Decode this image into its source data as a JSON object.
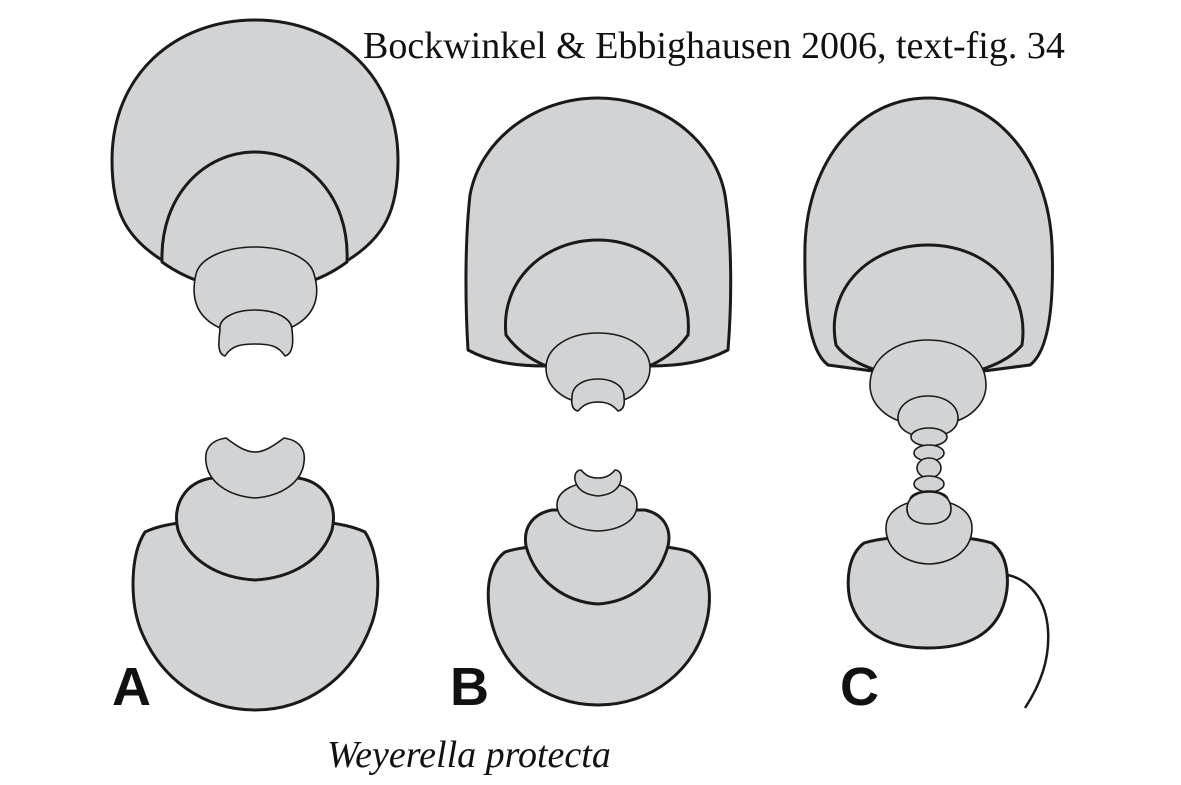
{
  "source_caption": "Bockwinkel & Ebbighausen 2006, text-fig. 34",
  "species_caption": "Weyerella protecta",
  "panels": [
    {
      "label": "A"
    },
    {
      "label": "B"
    },
    {
      "label": "C"
    }
  ],
  "colors": {
    "fill": "#d1d3d5",
    "outline": "#1a1a1a",
    "background": "#ffffff"
  }
}
